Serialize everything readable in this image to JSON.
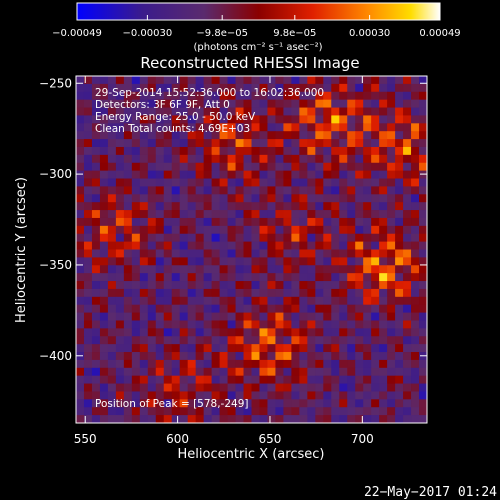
{
  "chart_data": {
    "type": "heatmap",
    "title": "Reconstructed RHESSI Image",
    "xlabel": "Heliocentric X (arcsec)",
    "ylabel": "Heliocentric Y (arcsec)",
    "xlim": [
      545,
      735
    ],
    "ylim": [
      -437,
      -246
    ],
    "xticks": [
      550,
      600,
      650,
      700
    ],
    "yticks": [
      -250,
      -300,
      -350,
      -400
    ],
    "xtick_labels": [
      "550",
      "600",
      "650",
      "700"
    ],
    "ytick_labels": [
      "−250",
      "−300",
      "−350",
      "−400"
    ],
    "annotations": [
      "29-Sep-2014 15:52:36.000 to 16:02:36.000",
      "Detectors: 3F 6F 9F, Att 0",
      "Energy Range: 25.0 - 50.0 keV",
      "Clean    Total counts: 4.69E+03"
    ],
    "peak_label": "Position of Peak = [578,-249]",
    "colorbar": {
      "range": [
        -0.00049,
        0.00049
      ],
      "ticks": [
        -0.00049,
        -0.0003,
        -9.8e-05,
        9.8e-05,
        0.0003,
        0.00049
      ],
      "tick_labels": [
        "−0.00049",
        "−0.00030",
        "−9.8e−05",
        "9.8e−05",
        "0.00030",
        "0.00049"
      ],
      "unit": "(photons cm⁻² s⁻¹ asec⁻²)",
      "colormap": [
        "#0000ff",
        "#3b1b8c",
        "#5a2a6e",
        "#8b0000",
        "#e02000",
        "#ff8800",
        "#ffdd00",
        "#ffffff"
      ]
    },
    "grid": false
  },
  "footer": {
    "date": "22−May−2017 01:24"
  },
  "colors": {
    "background": "#000000",
    "frame": "#ffffff"
  }
}
